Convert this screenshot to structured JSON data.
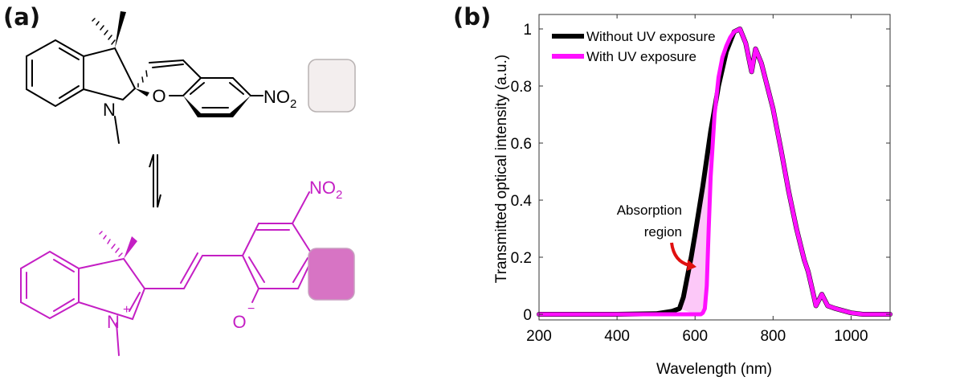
{
  "panels": {
    "a": {
      "label": "(a)",
      "closed_form": {
        "name": "spiropyran",
        "substituent_label": "NO2",
        "ring_heteroatoms": [
          "N",
          "O"
        ],
        "color": "#000000",
        "swatch_color": "#f3eeee"
      },
      "equilibrium_arrow": "reversible",
      "open_form": {
        "name": "merocyanine",
        "substituent_label": "NO2",
        "charges": [
          "N+",
          "O-"
        ],
        "color": "#c41fc4",
        "swatch_color": "#d774c4"
      }
    },
    "b": {
      "label": "(b)"
    }
  },
  "chart_data": {
    "type": "line",
    "title": "",
    "xlabel": "Wavelength (nm)",
    "ylabel": "Transmitted optical intensity (a.u.)",
    "xlim": [
      200,
      1100
    ],
    "ylim": [
      0,
      1
    ],
    "xticks": [
      200,
      400,
      600,
      800,
      1000
    ],
    "yticks": [
      0,
      0.2,
      0.4,
      0.6,
      0.8,
      1
    ],
    "ytick_labels": [
      "0",
      "0.2",
      "0.4",
      "0.6",
      "0.8",
      "1"
    ],
    "grid": false,
    "legend_position": "upper left",
    "annotation": {
      "text": [
        "Absorption",
        "region"
      ],
      "arrow_color": "#e01010",
      "fill_color": "#fcc8f8"
    },
    "series": [
      {
        "name": "Without UV exposure",
        "color": "#000000",
        "x": [
          200,
          400,
          500,
          540,
          560,
          570,
          580,
          590,
          600,
          620,
          640,
          660,
          680,
          700,
          715,
          730,
          745,
          755,
          770,
          800,
          820,
          840,
          860,
          880,
          890,
          900,
          910,
          925,
          940,
          960,
          1000,
          1030,
          1100
        ],
        "y": [
          0,
          0,
          0.002,
          0.01,
          0.02,
          0.06,
          0.13,
          0.2,
          0.28,
          0.45,
          0.64,
          0.8,
          0.92,
          0.99,
          1.0,
          0.95,
          0.85,
          0.93,
          0.88,
          0.72,
          0.58,
          0.43,
          0.3,
          0.19,
          0.15,
          0.09,
          0.03,
          0.07,
          0.03,
          0.02,
          0.005,
          0.0,
          0.0
        ]
      },
      {
        "name": "With UV exposure",
        "color": "#ff10ff",
        "x": [
          200,
          400,
          600,
          615,
          620,
          625,
          630,
          635,
          640,
          650,
          660,
          670,
          680,
          690,
          700,
          715,
          730,
          745,
          755,
          770,
          800,
          820,
          840,
          860,
          880,
          890,
          900,
          910,
          925,
          940,
          960,
          1000,
          1030,
          1100
        ],
        "y": [
          0,
          0,
          0,
          0.0,
          0.005,
          0.02,
          0.1,
          0.3,
          0.48,
          0.7,
          0.83,
          0.9,
          0.94,
          0.97,
          0.99,
          1.0,
          0.95,
          0.85,
          0.93,
          0.88,
          0.72,
          0.58,
          0.43,
          0.3,
          0.19,
          0.15,
          0.09,
          0.03,
          0.07,
          0.03,
          0.02,
          0.005,
          0.0,
          0.0
        ]
      }
    ]
  }
}
